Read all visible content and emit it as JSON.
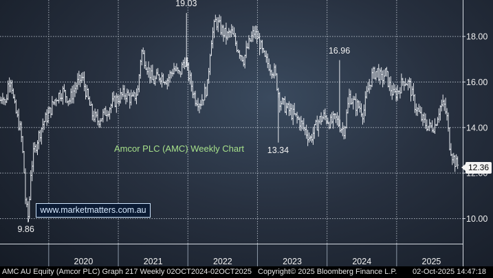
{
  "chart_data": {
    "type": "ohlc",
    "title": "Amcor PLC (AMC) Weekly Chart",
    "watermark": "www.marketmatters.com.au",
    "ylim": [
      8.9,
      19.6
    ],
    "y_ticks": [
      "10.00",
      "12.00",
      "14.00",
      "16.00",
      "18.00"
    ],
    "x_labels": [
      "2020",
      "2021",
      "2022",
      "2023",
      "2024",
      "2025"
    ],
    "x_range": [
      2019.3,
      2025.95
    ],
    "annotations": [
      {
        "text": "19.03",
        "date": 2021.98,
        "value": 19.03
      },
      {
        "text": "16.96",
        "date": 2024.18,
        "value": 16.96
      },
      {
        "text": "13.34",
        "date": 2023.3,
        "value": 13.34
      },
      {
        "text": "9.86",
        "date": 2019.71,
        "value": 9.86
      }
    ],
    "last_price": {
      "text": "12.36",
      "value": 12.36
    },
    "anchors": [
      [
        2019.3,
        15.2
      ],
      [
        2019.34,
        15.5
      ],
      [
        2019.38,
        15.0
      ],
      [
        2019.42,
        16.0
      ],
      [
        2019.46,
        16.2
      ],
      [
        2019.5,
        15.0
      ],
      [
        2019.55,
        14.4
      ],
      [
        2019.6,
        13.8
      ],
      [
        2019.64,
        12.4
      ],
      [
        2019.67,
        10.6
      ],
      [
        2019.71,
        10.0
      ],
      [
        2019.74,
        12.0
      ],
      [
        2019.78,
        12.8
      ],
      [
        2019.84,
        13.5
      ],
      [
        2019.92,
        14.2
      ],
      [
        2020.0,
        14.6
      ],
      [
        2020.1,
        15.3
      ],
      [
        2020.2,
        15.6
      ],
      [
        2020.3,
        15.2
      ],
      [
        2020.4,
        15.9
      ],
      [
        2020.48,
        16.2
      ],
      [
        2020.55,
        15.4
      ],
      [
        2020.62,
        14.6
      ],
      [
        2020.7,
        14.3
      ],
      [
        2020.8,
        14.6
      ],
      [
        2020.9,
        15.0
      ],
      [
        2021.0,
        15.3
      ],
      [
        2021.1,
        15.5
      ],
      [
        2021.2,
        15.2
      ],
      [
        2021.28,
        15.6
      ],
      [
        2021.33,
        17.4
      ],
      [
        2021.4,
        16.8
      ],
      [
        2021.5,
        16.0
      ],
      [
        2021.6,
        16.3
      ],
      [
        2021.7,
        16.1
      ],
      [
        2021.8,
        16.6
      ],
      [
        2021.88,
        16.3
      ],
      [
        2021.95,
        17.0
      ],
      [
        2022.02,
        16.2
      ],
      [
        2022.1,
        15.3
      ],
      [
        2022.18,
        15.1
      ],
      [
        2022.28,
        15.8
      ],
      [
        2022.33,
        17.8
      ],
      [
        2022.4,
        18.7
      ],
      [
        2022.48,
        18.3
      ],
      [
        2022.56,
        18.0
      ],
      [
        2022.62,
        18.2
      ],
      [
        2022.7,
        17.6
      ],
      [
        2022.8,
        17.0
      ],
      [
        2022.88,
        17.7
      ],
      [
        2022.95,
        18.2
      ],
      [
        2023.02,
        17.8
      ],
      [
        2023.1,
        17.0
      ],
      [
        2023.18,
        16.7
      ],
      [
        2023.25,
        16.4
      ],
      [
        2023.32,
        15.2
      ],
      [
        2023.4,
        14.9
      ],
      [
        2023.5,
        14.6
      ],
      [
        2023.6,
        14.3
      ],
      [
        2023.68,
        13.9
      ],
      [
        2023.76,
        13.5
      ],
      [
        2023.82,
        13.9
      ],
      [
        2023.88,
        14.3
      ],
      [
        2023.96,
        14.5
      ],
      [
        2024.05,
        14.2
      ],
      [
        2024.12,
        14.4
      ],
      [
        2024.2,
        14.0
      ],
      [
        2024.25,
        13.9
      ],
      [
        2024.32,
        15.4
      ],
      [
        2024.4,
        15.0
      ],
      [
        2024.47,
        14.9
      ],
      [
        2024.52,
        14.6
      ],
      [
        2024.58,
        15.6
      ],
      [
        2024.65,
        16.3
      ],
      [
        2024.72,
        16.5
      ],
      [
        2024.78,
        16.1
      ],
      [
        2024.84,
        16.4
      ],
      [
        2024.9,
        15.8
      ],
      [
        2024.96,
        15.4
      ],
      [
        2025.02,
        15.6
      ],
      [
        2025.1,
        16.1
      ],
      [
        2025.18,
        15.9
      ],
      [
        2025.26,
        15.0
      ],
      [
        2025.34,
        14.5
      ],
      [
        2025.4,
        14.2
      ],
      [
        2025.48,
        14.0
      ],
      [
        2025.55,
        14.1
      ],
      [
        2025.62,
        14.9
      ],
      [
        2025.68,
        15.0
      ],
      [
        2025.72,
        14.5
      ],
      [
        2025.76,
        13.3
      ],
      [
        2025.8,
        12.8
      ],
      [
        2025.85,
        12.4
      ],
      [
        2025.88,
        12.36
      ]
    ]
  },
  "footer": {
    "left": "AMC AU Equity (Amcor PLC) Graph 217 Weekly 02OCT2024-02OCT2025",
    "center": "Copyright© 2025 Bloomberg Finance L.P.",
    "right": "02-Oct-2025 14:47:18"
  },
  "colors": {
    "bars": "#e9ecf1",
    "grid": "#cdd5df",
    "axis_text": "#f0f0f0",
    "title": "#a6e08a",
    "watermark_border": "#cfe6ff"
  }
}
